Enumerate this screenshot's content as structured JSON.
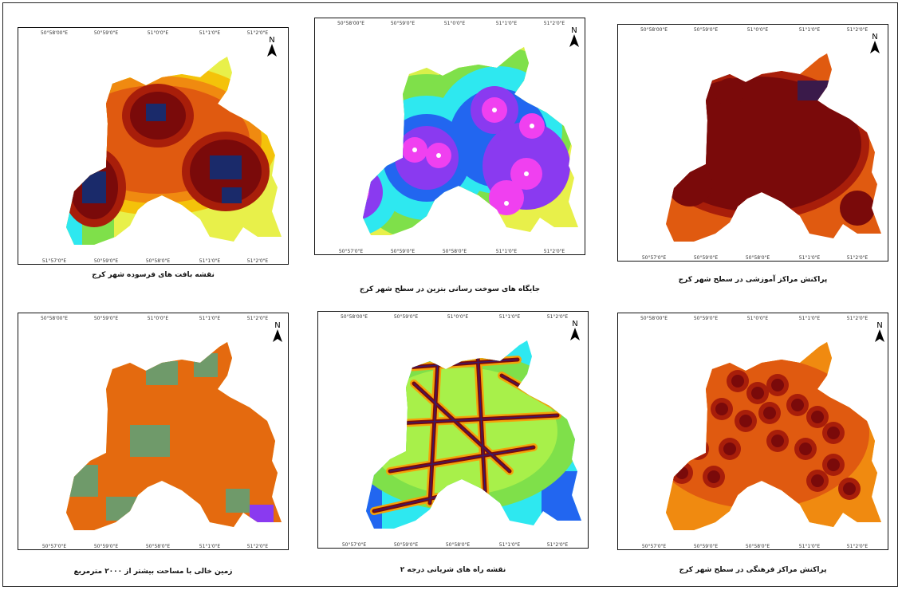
{
  "north_label": "N",
  "colors": {
    "dark_red": "#7a0a0a",
    "brown": "#8b1a0a",
    "orange": "#e05a10",
    "yellow": "#f4e20a",
    "green": "#7fe04a",
    "cyan": "#2ee8f0",
    "blue": "#2266f0",
    "purple": "#8a3af0",
    "magenta": "#f040f0",
    "navy": "#1a2a6a",
    "grey_green": "#6f9a6a"
  },
  "maps": [
    {
      "caption": "نقشه بافت های فرسوده شهر کرج",
      "top_ticks": [
        "50°58'00\"E",
        "50°59'0\"E",
        "51°0'0\"E",
        "51°1'0\"E",
        "51°2'0\"E"
      ],
      "bottom_ticks": [
        "51°57'0\"E",
        "50°59'0\"E",
        "50°58'0\"E",
        "51°1'0\"E",
        "51°2'0\"E"
      ]
    },
    {
      "caption": "جایگاه های سوخت رسانی بنزین در سطح شهر کرج",
      "top_ticks": [
        "50°58'00\"E",
        "50°59'0\"E",
        "51°0'0\"E",
        "51°1'0\"E",
        "51°2'0\"E"
      ],
      "bottom_ticks": [
        "50°57'0\"E",
        "50°59'0\"E",
        "50°58'0\"E",
        "51°1'0\"E",
        "51°2'0\"E"
      ]
    },
    {
      "caption": "پراکنش مراکز آموزشی در سطح شهر کرج",
      "top_ticks": [
        "50°58'00\"E",
        "50°59'0\"E",
        "51°0'0\"E",
        "51°1'0\"E",
        "51°2'0\"E"
      ],
      "bottom_ticks": [
        "50°57'0\"E",
        "50°59'0\"E",
        "50°58'0\"E",
        "51°1'0\"E",
        "51°2'0\"E"
      ]
    },
    {
      "caption": "زمین خالی با مساحت بیشتر از ۲۰۰۰ مترمربع",
      "top_ticks": [
        "50°58'00\"E",
        "50°59'0\"E",
        "51°0'0\"E",
        "51°1'0\"E",
        "51°2'0\"E"
      ],
      "bottom_ticks": [
        "50°57'0\"E",
        "50°59'0\"E",
        "50°58'0\"E",
        "51°1'0\"E",
        "51°2'0\"E"
      ]
    },
    {
      "caption": "نقشه راه های شریانی درجه ۲",
      "top_ticks": [
        "50°58'00\"E",
        "50°59'0\"E",
        "51°0'0\"E",
        "51°1'0\"E",
        "51°2'0\"E"
      ],
      "bottom_ticks": [
        "50°57'0\"E",
        "50°59'0\"E",
        "50°58'0\"E",
        "51°1'0\"E",
        "51°2'0\"E"
      ]
    },
    {
      "caption": "پراکنش مراکز فرهنگی در سطح شهر کرج",
      "top_ticks": [
        "50°58'00\"E",
        "50°59'0\"E",
        "51°0'0\"E",
        "51°1'0\"E",
        "51°2'0\"E"
      ],
      "bottom_ticks": [
        "50°57'0\"E",
        "50°59'0\"E",
        "50°58'0\"E",
        "51°1'0\"E",
        "51°2'0\"E"
      ]
    }
  ]
}
